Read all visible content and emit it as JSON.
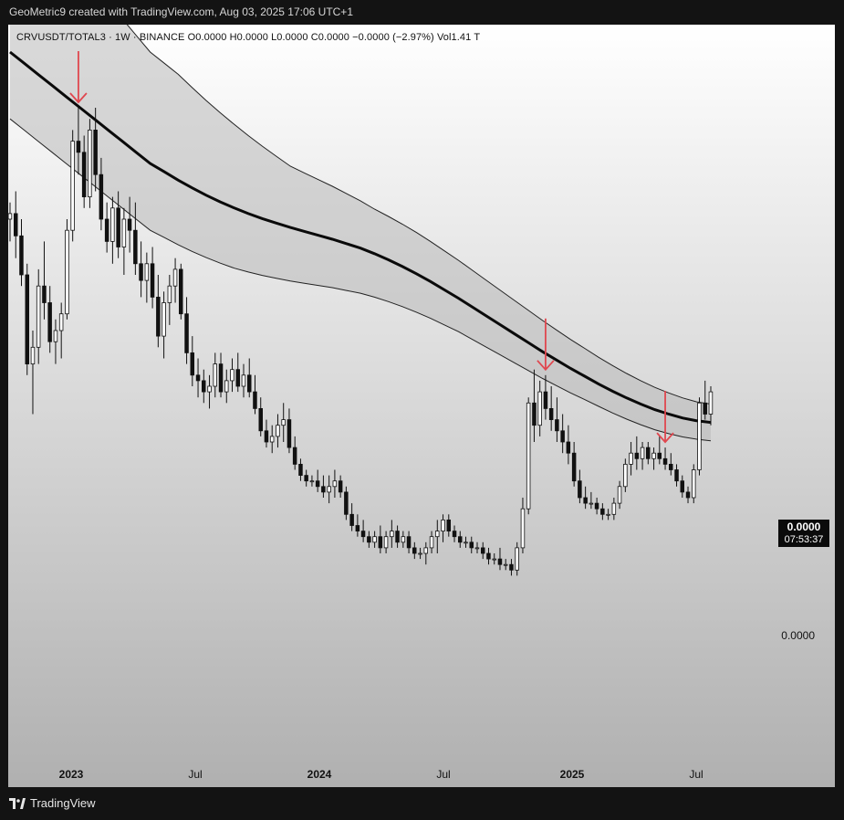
{
  "caption": "GeoMetric9 created with TradingView.com, Aug 03, 2025 17:06 UTC+1",
  "legend": "CRVUSDT/TOTAL3 · 1W · BINANCE  O0.0000  H0.0000  L0.0000  C0.0000  −0.0000 (−2.97%)  Vol1.41 T",
  "price_tag": {
    "price": "0.0000",
    "countdown": "07:53:37"
  },
  "price_axis_label": "0.0000",
  "time_axis": [
    {
      "label": "2023",
      "year": true
    },
    {
      "label": "Jul",
      "year": false
    },
    {
      "label": "2024",
      "year": true
    },
    {
      "label": "Jul",
      "year": false
    },
    {
      "label": "2025",
      "year": true
    },
    {
      "label": "Jul",
      "year": false
    }
  ],
  "brand": "TradingView",
  "colors": {
    "arrow": "#e0474f",
    "candle": "#111111",
    "band_fill": "#b9b9b9",
    "midline": "#0a0a0a"
  },
  "chart_data": {
    "type": "candlestick",
    "symbol": "CRVUSDT/TOTAL3",
    "interval": "1W",
    "exchange": "BINANCE",
    "ratio_index": {
      "note": "Prices print as 0.0000 on the chart; values are on a relative 0-100 scale of the chart's vertical range",
      "candles": [
        [
          70,
          73,
          66,
          71
        ],
        [
          71,
          75,
          63,
          67
        ],
        [
          67,
          70,
          58,
          60
        ],
        [
          60,
          62,
          42,
          44
        ],
        [
          44,
          50,
          35,
          47
        ],
        [
          47,
          61,
          44,
          58
        ],
        [
          58,
          66,
          52,
          55
        ],
        [
          55,
          58,
          46,
          48
        ],
        [
          48,
          52,
          44,
          50
        ],
        [
          50,
          55,
          45,
          53
        ],
        [
          53,
          70,
          52,
          68
        ],
        [
          68,
          86,
          66,
          84
        ],
        [
          84,
          90,
          78,
          82
        ],
        [
          82,
          85,
          72,
          74
        ],
        [
          74,
          88,
          72,
          86
        ],
        [
          86,
          90,
          75,
          78
        ],
        [
          78,
          81,
          68,
          70
        ],
        [
          70,
          73,
          64,
          66
        ],
        [
          66,
          74,
          62,
          72
        ],
        [
          72,
          75,
          63,
          65
        ],
        [
          65,
          72,
          60,
          70
        ],
        [
          70,
          74,
          64,
          68
        ],
        [
          68,
          73,
          60,
          62
        ],
        [
          62,
          66,
          56,
          59
        ],
        [
          59,
          64,
          55,
          62
        ],
        [
          62,
          65,
          54,
          56
        ],
        [
          56,
          60,
          47,
          49
        ],
        [
          49,
          57,
          45,
          55
        ],
        [
          55,
          60,
          51,
          58
        ],
        [
          58,
          63,
          55,
          61
        ],
        [
          61,
          62,
          52,
          53
        ],
        [
          53,
          56,
          44,
          46
        ],
        [
          46,
          49,
          40,
          42
        ],
        [
          42,
          45,
          38,
          41
        ],
        [
          41,
          43,
          37,
          39
        ],
        [
          39,
          42,
          36,
          40
        ],
        [
          40,
          46,
          38,
          44
        ],
        [
          44,
          46,
          38,
          39
        ],
        [
          39,
          43,
          37,
          41
        ],
        [
          41,
          45,
          39,
          43
        ],
        [
          43,
          46,
          39,
          40
        ],
        [
          40,
          44,
          38,
          42
        ],
        [
          42,
          45,
          38,
          39
        ],
        [
          39,
          42,
          35,
          36
        ],
        [
          36,
          38,
          31,
          32
        ],
        [
          32,
          34,
          29,
          30
        ],
        [
          30,
          33,
          28,
          31
        ],
        [
          31,
          35,
          29,
          33
        ],
        [
          33,
          37,
          30,
          34
        ],
        [
          34,
          36,
          28,
          29
        ],
        [
          29,
          31,
          25,
          26
        ],
        [
          26,
          27,
          23,
          24
        ],
        [
          24,
          25,
          22,
          23
        ],
        [
          23,
          24,
          22,
          23
        ],
        [
          23,
          25,
          21,
          22
        ],
        [
          22,
          24,
          20,
          21
        ],
        [
          21,
          24,
          19,
          22
        ],
        [
          22,
          25,
          20,
          23
        ],
        [
          23,
          24,
          20,
          21
        ],
        [
          21,
          22,
          16,
          17
        ],
        [
          17,
          19,
          14,
          15
        ],
        [
          15,
          17,
          13,
          14
        ],
        [
          14,
          16,
          12,
          13
        ],
        [
          13,
          14,
          11,
          12
        ],
        [
          12,
          14,
          11,
          13
        ],
        [
          13,
          15,
          10,
          11
        ],
        [
          11,
          14,
          10,
          13
        ],
        [
          13,
          16,
          11,
          14
        ],
        [
          14,
          15,
          11,
          12
        ],
        [
          12,
          14,
          11,
          13
        ],
        [
          13,
          14,
          10,
          11
        ],
        [
          11,
          12,
          9,
          10
        ],
        [
          10,
          11,
          9,
          10
        ],
        [
          10,
          12,
          8,
          11
        ],
        [
          11,
          14,
          10,
          13
        ],
        [
          13,
          16,
          10,
          14
        ],
        [
          14,
          17,
          12,
          16
        ],
        [
          16,
          17,
          13,
          14
        ],
        [
          14,
          15,
          12,
          13
        ],
        [
          13,
          14,
          11,
          12
        ],
        [
          12,
          13,
          11,
          12
        ],
        [
          12,
          13,
          10,
          11
        ],
        [
          11,
          12,
          10,
          11
        ],
        [
          11,
          12,
          9,
          10
        ],
        [
          10,
          11,
          8,
          9
        ],
        [
          9,
          10,
          8,
          9
        ],
        [
          9,
          11,
          7,
          8
        ],
        [
          8,
          9,
          7,
          8
        ],
        [
          8,
          9,
          6,
          7
        ],
        [
          7,
          12,
          6,
          11
        ],
        [
          11,
          20,
          10,
          18
        ],
        [
          18,
          38,
          17,
          37
        ],
        [
          37,
          43,
          30,
          33
        ],
        [
          33,
          41,
          31,
          39
        ],
        [
          39,
          42,
          34,
          36
        ],
        [
          36,
          40,
          32,
          34
        ],
        [
          34,
          38,
          30,
          32
        ],
        [
          32,
          35,
          28,
          30
        ],
        [
          30,
          33,
          26,
          28
        ],
        [
          28,
          30,
          22,
          23
        ],
        [
          23,
          25,
          19,
          20
        ],
        [
          20,
          22,
          18,
          19
        ],
        [
          19,
          21,
          18,
          19
        ],
        [
          19,
          20,
          17,
          18
        ],
        [
          18,
          19,
          16,
          17
        ],
        [
          17,
          18,
          16,
          17
        ],
        [
          17,
          20,
          16,
          19
        ],
        [
          19,
          23,
          18,
          22
        ],
        [
          22,
          27,
          21,
          26
        ],
        [
          26,
          30,
          24,
          28
        ],
        [
          28,
          31,
          25,
          27
        ],
        [
          27,
          30,
          25,
          29
        ],
        [
          29,
          30,
          26,
          27
        ],
        [
          27,
          29,
          25,
          28
        ],
        [
          28,
          31,
          26,
          27
        ],
        [
          27,
          29,
          25,
          26
        ],
        [
          26,
          28,
          24,
          25
        ],
        [
          25,
          26,
          22,
          23
        ],
        [
          23,
          24,
          20,
          21
        ],
        [
          21,
          22,
          19,
          20
        ],
        [
          20,
          26,
          19,
          25
        ],
        [
          25,
          38,
          24,
          37
        ],
        [
          37,
          41,
          34,
          35
        ],
        [
          35,
          40,
          33,
          39
        ]
      ],
      "midline": [
        100,
        98,
        96,
        94,
        92,
        90,
        88,
        86,
        84,
        82,
        80,
        78.5,
        77,
        75.6,
        74.3,
        73.1,
        72,
        71,
        70.1,
        69.3,
        68.5,
        67.8,
        67.1,
        66.4,
        65.6,
        64.8,
        63.8,
        62.7,
        61.5,
        60.2,
        58.8,
        57.3,
        55.8,
        54.2,
        52.6,
        51,
        49.4,
        47.8,
        46.2,
        44.7,
        43.2,
        41.8,
        40.4,
        39.1,
        37.9,
        36.8,
        35.8,
        35,
        34.3,
        33.8,
        33.5
      ],
      "band_offset_top": [
        40,
        39,
        37,
        35,
        32,
        29,
        26,
        24,
        22,
        21,
        20,
        19.5,
        19,
        18,
        17,
        16,
        15,
        14,
        13,
        12,
        11,
        10.5,
        10,
        9.5,
        9,
        8.5,
        8,
        7.8,
        7.6,
        7.4,
        7.2,
        7,
        6.8,
        6.6,
        6.4,
        6.2,
        6,
        5.8,
        5.6,
        5.4,
        5.2,
        5,
        4.8,
        4.6,
        4.4,
        4.2,
        4,
        3.8,
        3.6,
        3.4,
        3.3
      ],
      "band_offset_bottom": [
        12,
        12,
        12,
        12,
        12,
        12,
        12,
        12,
        12,
        12,
        12,
        11.8,
        11.6,
        11.4,
        11.2,
        11,
        10.8,
        10.5,
        10.2,
        9.9,
        9.6,
        9.3,
        9,
        8.7,
        8.4,
        8.1,
        7.8,
        7.5,
        7.2,
        6.9,
        6.6,
        6.3,
        6,
        5.8,
        5.6,
        5.4,
        5.2,
        5,
        4.8,
        4.6,
        4.4,
        4.2,
        4,
        3.9,
        3.8,
        3.7,
        3.6,
        3.5,
        3.4,
        3.3,
        3.3
      ]
    },
    "arrows_at_candle": [
      12,
      94,
      115
    ],
    "x_axis_ticks": [
      "2023",
      "Jul",
      "2024",
      "Jul",
      "2025",
      "Jul"
    ]
  }
}
